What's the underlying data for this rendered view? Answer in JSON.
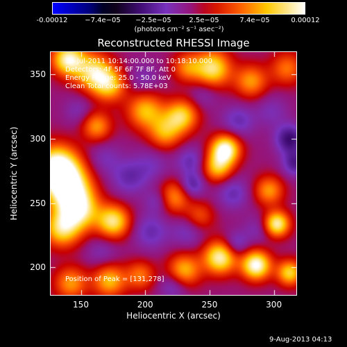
{
  "colorbar": {
    "ticks": [
      "-0.00012",
      "−7.4e−05",
      "−2.5e−05",
      "2.5e−05",
      "7.4e−05",
      "0.00012"
    ],
    "unit": "(photons cm⁻² s⁻¹ asec⁻²)",
    "colors": [
      "#0000ff",
      "#000000",
      "#7a00ff",
      "#ff0000",
      "#ffc800",
      "#ffffff"
    ],
    "range": [
      -0.00012,
      0.00012
    ]
  },
  "plot": {
    "title": "Reconstructed RHESSI Image",
    "info": [
      "19-Jul-2011 10:14:00.000 to 10:18:10.000",
      "Detectors: 4F 5F 6F 7F 8F, Att 0",
      "Energy Range: 25.0 - 50.0 keV",
      "Clean    Total counts: 5.78E+03"
    ],
    "peak_label": "Position of Peak = [131,278]"
  },
  "chart_data": {
    "type": "heatmap",
    "title": "Reconstructed RHESSI Image",
    "xlabel": "Heliocentric X (arcsec)",
    "ylabel": "Heliocentric Y (arcsec)",
    "xlim": [
      126,
      318
    ],
    "ylim": [
      178,
      368
    ],
    "xticks": [
      "150",
      "200",
      "250",
      "300"
    ],
    "yticks": [
      "200",
      "250",
      "300",
      "350"
    ],
    "xtick_values": [
      150,
      200,
      250,
      300
    ],
    "ytick_values": [
      200,
      250,
      300,
      350
    ],
    "peak": [
      131,
      278
    ],
    "color_range": [
      -0.00012,
      0.00012
    ],
    "blobs": [
      {
        "x": 131,
        "y": 278,
        "v": 0.00012,
        "r": 12
      },
      {
        "x": 140,
        "y": 262,
        "v": 0.000105,
        "r": 12
      },
      {
        "x": 148,
        "y": 245,
        "v": 9e-05,
        "r": 11
      },
      {
        "x": 135,
        "y": 230,
        "v": 8e-05,
        "r": 10
      },
      {
        "x": 175,
        "y": 236,
        "v": 9e-05,
        "r": 9
      },
      {
        "x": 160,
        "y": 352,
        "v": 8.5e-05,
        "r": 10
      },
      {
        "x": 172,
        "y": 342,
        "v": 7e-05,
        "r": 9
      },
      {
        "x": 140,
        "y": 362,
        "v": 0.0001,
        "r": 9
      },
      {
        "x": 162,
        "y": 310,
        "v": 6e-05,
        "r": 8
      },
      {
        "x": 200,
        "y": 322,
        "v": 7e-05,
        "r": 10
      },
      {
        "x": 215,
        "y": 305,
        "v": 6e-05,
        "r": 9
      },
      {
        "x": 228,
        "y": 318,
        "v": 8e-05,
        "r": 9
      },
      {
        "x": 222,
        "y": 255,
        "v": 6e-05,
        "r": 9
      },
      {
        "x": 262,
        "y": 292,
        "v": 0.00011,
        "r": 8
      },
      {
        "x": 256,
        "y": 278,
        "v": 7e-05,
        "r": 8
      },
      {
        "x": 252,
        "y": 355,
        "v": 9e-05,
        "r": 10
      },
      {
        "x": 282,
        "y": 345,
        "v": 6e-05,
        "r": 9
      },
      {
        "x": 296,
        "y": 260,
        "v": 6e-05,
        "r": 8
      },
      {
        "x": 302,
        "y": 234,
        "v": 0.0001,
        "r": 7
      },
      {
        "x": 258,
        "y": 208,
        "v": 0.0001,
        "r": 9
      },
      {
        "x": 286,
        "y": 202,
        "v": 0.00011,
        "r": 8
      },
      {
        "x": 312,
        "y": 196,
        "v": 8e-05,
        "r": 7
      },
      {
        "x": 230,
        "y": 198,
        "v": 7e-05,
        "r": 9
      },
      {
        "x": 172,
        "y": 190,
        "v": 7e-05,
        "r": 9
      },
      {
        "x": 196,
        "y": 194,
        "v": 5e-05,
        "r": 8
      },
      {
        "x": 142,
        "y": 188,
        "v": 6e-05,
        "r": 9
      },
      {
        "x": 310,
        "y": 355,
        "v": 5e-05,
        "r": 9
      },
      {
        "x": 232,
        "y": 356,
        "v": 5e-05,
        "r": 8
      },
      {
        "x": 242,
        "y": 240,
        "v": 4e-05,
        "r": 8
      },
      {
        "x": 187,
        "y": 270,
        "v": -3e-05,
        "r": 10
      },
      {
        "x": 205,
        "y": 280,
        "v": -2e-05,
        "r": 10
      },
      {
        "x": 168,
        "y": 285,
        "v": -2e-05,
        "r": 9
      },
      {
        "x": 204,
        "y": 228,
        "v": -3e-05,
        "r": 10
      },
      {
        "x": 233,
        "y": 228,
        "v": -2.5e-05,
        "r": 9
      },
      {
        "x": 235,
        "y": 283,
        "v": -3e-05,
        "r": 8
      },
      {
        "x": 268,
        "y": 258,
        "v": -3e-05,
        "r": 9
      },
      {
        "x": 272,
        "y": 314,
        "v": -3e-05,
        "r": 9
      },
      {
        "x": 245,
        "y": 335,
        "v": -2e-05,
        "r": 8
      },
      {
        "x": 298,
        "y": 322,
        "v": -2e-05,
        "r": 9
      },
      {
        "x": 288,
        "y": 230,
        "v": -2e-05,
        "r": 8
      },
      {
        "x": 198,
        "y": 347,
        "v": -2e-05,
        "r": 9
      },
      {
        "x": 166,
        "y": 212,
        "v": -2e-05,
        "r": 9
      },
      {
        "x": 312,
        "y": 300,
        "v": -5e-05,
        "r": 8
      },
      {
        "x": 316,
        "y": 281,
        "v": -4e-05,
        "r": 7
      },
      {
        "x": 236,
        "y": 264,
        "v": -4e-05,
        "r": 7
      },
      {
        "x": 270,
        "y": 218,
        "v": -3.5e-05,
        "r": 7
      },
      {
        "x": 222,
        "y": 186,
        "v": -3e-05,
        "r": 8
      },
      {
        "x": 210,
        "y": 252,
        "v": -3e-05,
        "r": 7
      },
      {
        "x": 148,
        "y": 322,
        "v": -2e-05,
        "r": 8
      }
    ]
  },
  "footer": {
    "timestamp": "9-Aug-2013 04:13"
  }
}
